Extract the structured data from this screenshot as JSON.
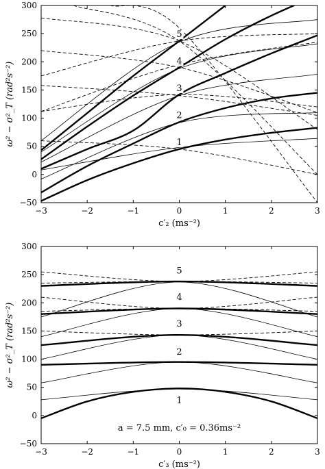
{
  "chart_data": [
    {
      "type": "line",
      "title": "",
      "xlabel": "c′₂ (ms⁻²)",
      "ylabel": "ω² − σ²_T (rad²s⁻²)",
      "xlim": [
        -3,
        3
      ],
      "ylim": [
        -50,
        300
      ],
      "xticks": [
        "−3",
        "−2",
        "−1",
        "0",
        "1",
        "2",
        "3"
      ],
      "yticks": [
        "−50",
        "0",
        "50",
        "100",
        "150",
        "200",
        "250",
        "300"
      ],
      "mode_labels": [
        {
          "text": "1",
          "x": 0,
          "y": 52
        },
        {
          "text": "2",
          "x": 0,
          "y": 100
        },
        {
          "text": "3",
          "x": 0,
          "y": 148
        },
        {
          "text": "4",
          "x": 0,
          "y": 196
        },
        {
          "text": "5",
          "x": 0,
          "y": 244
        }
      ],
      "series": [
        {
          "style": "thick",
          "points": [
            [
              -3,
              -47
            ],
            [
              -2,
              -10
            ],
            [
              -1,
              20
            ],
            [
              0,
              45
            ],
            [
              1,
              62
            ],
            [
              2,
              74
            ],
            [
              3,
              83
            ]
          ]
        },
        {
          "style": "thick",
          "points": [
            [
              -3,
              -32
            ],
            [
              -2,
              15
            ],
            [
              -1,
              55
            ],
            [
              0,
              93
            ],
            [
              1,
              118
            ],
            [
              2,
              135
            ],
            [
              3,
              145
            ]
          ]
        },
        {
          "style": "thick",
          "points": [
            [
              -3,
              10
            ],
            [
              -2,
              45
            ],
            [
              -1,
              78
            ],
            [
              0,
              142
            ],
            [
              1,
              180
            ],
            [
              2,
              215
            ],
            [
              3,
              247
            ]
          ]
        },
        {
          "style": "thick",
          "points": [
            [
              -3,
              27
            ],
            [
              -2,
              85
            ],
            [
              -1,
              140
            ],
            [
              0,
              190
            ],
            [
              1,
              240
            ],
            [
              2,
              282
            ],
            [
              3,
              318
            ]
          ]
        },
        {
          "style": "thick",
          "points": [
            [
              -3,
              43
            ],
            [
              -2,
              109
            ],
            [
              -1,
              175
            ],
            [
              0,
              237
            ],
            [
              1,
              300
            ]
          ]
        },
        {
          "style": "thin",
          "points": [
            [
              -3,
              8
            ],
            [
              0,
              48
            ],
            [
              3,
              64
            ]
          ]
        },
        {
          "style": "thin",
          "points": [
            [
              -3,
              -8
            ],
            [
              0,
              92
            ],
            [
              3,
              110
            ]
          ]
        },
        {
          "style": "thin",
          "points": [
            [
              -3,
              22
            ],
            [
              0,
              140
            ],
            [
              3,
              178
            ]
          ]
        },
        {
          "style": "thin",
          "points": [
            [
              -3,
              40
            ],
            [
              0,
              188
            ],
            [
              3,
              232
            ]
          ]
        },
        {
          "style": "thin",
          "points": [
            [
              -3,
              60
            ],
            [
              0,
              235
            ],
            [
              3,
              275
            ]
          ]
        },
        {
          "style": "dashed",
          "points": [
            [
              -3,
              60
            ],
            [
              0,
              45
            ],
            [
              3,
              0
            ]
          ]
        },
        {
          "style": "dashed",
          "points": [
            [
              -3,
              112
            ],
            [
              0,
              142
            ],
            [
              3,
              120
            ]
          ]
        },
        {
          "style": "dashed",
          "points": [
            [
              -3,
              158
            ],
            [
              0,
              140
            ],
            [
              3,
              105
            ]
          ]
        },
        {
          "style": "dashed",
          "points": [
            [
              -3,
              220
            ],
            [
              0,
              190
            ],
            [
              3,
              110
            ]
          ]
        },
        {
          "style": "dashed",
          "points": [
            [
              -3,
              278
            ],
            [
              0,
              237
            ],
            [
              3,
              80
            ]
          ]
        },
        {
          "style": "dashed",
          "points": [
            [
              -3,
              112
            ],
            [
              0,
              195
            ],
            [
              3,
              235
            ]
          ]
        },
        {
          "style": "dashed",
          "points": [
            [
              -3,
              175
            ],
            [
              0,
              237
            ],
            [
              3,
              250
            ]
          ]
        },
        {
          "style": "dashed",
          "points": [
            [
              -2.3,
              300
            ],
            [
              0,
              237
            ],
            [
              3,
              0
            ]
          ]
        },
        {
          "style": "dashed",
          "points": [
            [
              -1.5,
              300
            ],
            [
              0,
              260
            ],
            [
              3,
              -50
            ]
          ]
        }
      ]
    },
    {
      "type": "line",
      "title": "",
      "xlabel": "c′₃ (ms⁻²)",
      "ylabel": "ω² − σ²_T (rad²s⁻²)",
      "xlim": [
        -3,
        3
      ],
      "ylim": [
        -50,
        300
      ],
      "xticks": [
        "−3",
        "−2",
        "−1",
        "0",
        "1",
        "2",
        "3"
      ],
      "yticks": [
        "−50",
        "0",
        "50",
        "100",
        "150",
        "200",
        "250",
        "300"
      ],
      "annotation": "a = 7.5 mm, c′₀ = 0.36ms⁻²",
      "mode_labels": [
        {
          "text": "1",
          "x": 0,
          "y": 22
        },
        {
          "text": "2",
          "x": 0,
          "y": 108
        },
        {
          "text": "3",
          "x": 0,
          "y": 158
        },
        {
          "text": "4",
          "x": 0,
          "y": 205
        },
        {
          "text": "5",
          "x": 0,
          "y": 252
        }
      ],
      "series": [
        {
          "style": "thick",
          "points": [
            [
              -3,
              -5
            ],
            [
              -2,
              25
            ],
            [
              -1,
              42
            ],
            [
              0,
              48
            ],
            [
              1,
              42
            ],
            [
              2,
              25
            ],
            [
              3,
              -5
            ]
          ]
        },
        {
          "style": "thick",
          "points": [
            [
              -3,
              90
            ],
            [
              0,
              95
            ],
            [
              3,
              90
            ]
          ]
        },
        {
          "style": "thick",
          "points": [
            [
              -3,
              125
            ],
            [
              0,
              143
            ],
            [
              3,
              125
            ]
          ]
        },
        {
          "style": "thick",
          "points": [
            [
              -3,
              180
            ],
            [
              0,
              190
            ],
            [
              3,
              180
            ]
          ]
        },
        {
          "style": "thick",
          "points": [
            [
              -3,
              230
            ],
            [
              0,
              238
            ],
            [
              3,
              230
            ]
          ]
        },
        {
          "style": "thin",
          "points": [
            [
              -3,
              28
            ],
            [
              0,
              47
            ],
            [
              3,
              28
            ]
          ]
        },
        {
          "style": "thin",
          "points": [
            [
              -3,
              58
            ],
            [
              0,
              95
            ],
            [
              3,
              58
            ]
          ]
        },
        {
          "style": "thin",
          "points": [
            [
              -3,
              100
            ],
            [
              0,
              143
            ],
            [
              3,
              100
            ]
          ]
        },
        {
          "style": "thin",
          "points": [
            [
              -3,
              140
            ],
            [
              0,
              190
            ],
            [
              3,
              140
            ]
          ]
        },
        {
          "style": "thin",
          "points": [
            [
              -3,
              175
            ],
            [
              0,
              237
            ],
            [
              3,
              175
            ]
          ]
        },
        {
          "style": "dashed",
          "points": [
            [
              -3,
              150
            ],
            [
              0,
              143
            ],
            [
              3,
              150
            ]
          ]
        },
        {
          "style": "dashed",
          "points": [
            [
              -3,
              185
            ],
            [
              0,
              190
            ],
            [
              3,
              185
            ]
          ]
        },
        {
          "style": "dashed",
          "points": [
            [
              -3,
              210
            ],
            [
              0,
              190
            ],
            [
              3,
              210
            ]
          ]
        },
        {
          "style": "dashed",
          "points": [
            [
              -3,
              235
            ],
            [
              0,
              238
            ],
            [
              3,
              235
            ]
          ]
        },
        {
          "style": "dashed",
          "points": [
            [
              -3,
              255
            ],
            [
              0,
              238
            ],
            [
              3,
              255
            ]
          ]
        }
      ]
    }
  ]
}
